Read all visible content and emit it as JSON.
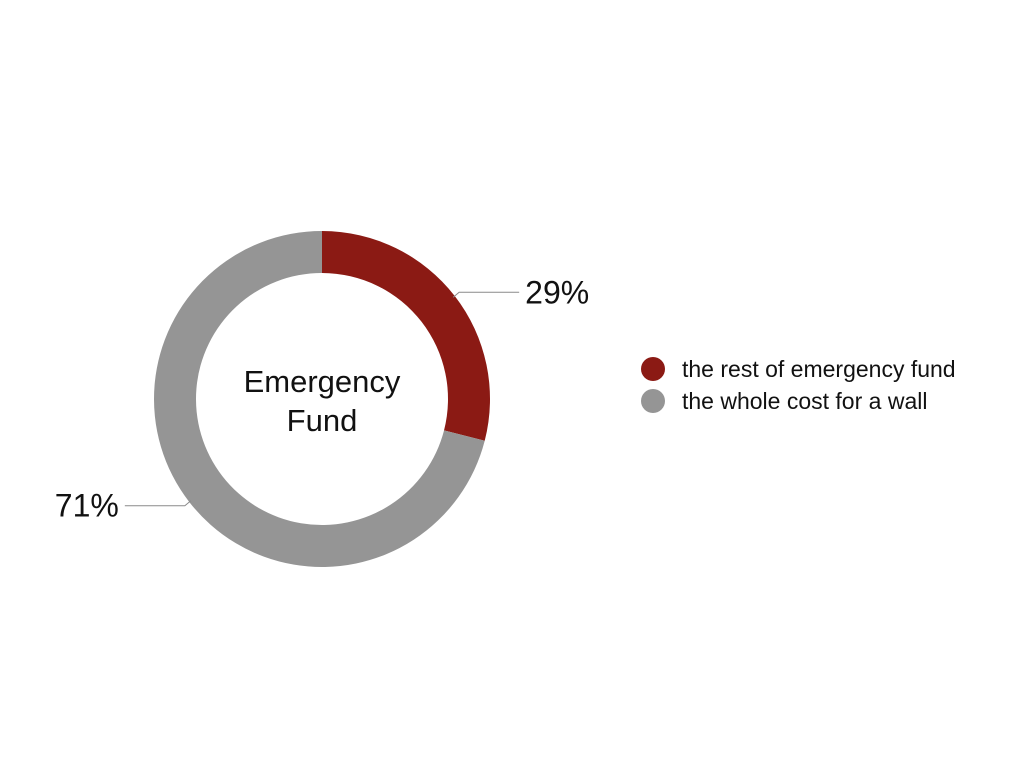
{
  "chart_data": {
    "type": "pie",
    "variant": "donut",
    "center_label": [
      "Emergency",
      "Fund"
    ],
    "series": [
      {
        "name": "the rest of emergency fund",
        "value": 29,
        "label": "29%",
        "color": "#8B1A14"
      },
      {
        "name": "the whole cost for a wall",
        "value": 71,
        "label": "71%",
        "color": "#959595"
      }
    ],
    "start_angle_deg": 0,
    "direction": "clockwise",
    "legend": {
      "placement": "right"
    }
  }
}
